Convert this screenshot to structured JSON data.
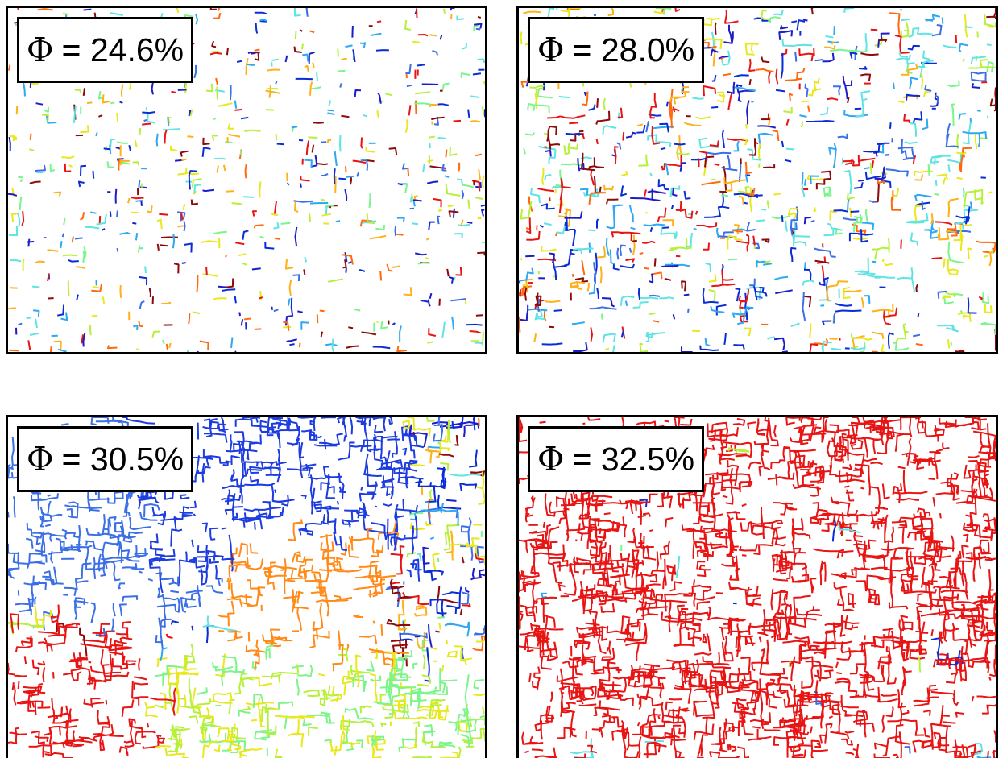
{
  "panels": [
    {
      "id": "p1",
      "phi_symbol": "Φ",
      "label": "= 24.6%",
      "seed": 11,
      "pattern": "sparse"
    },
    {
      "id": "p2",
      "phi_symbol": "Φ",
      "label": "= 28.0%",
      "seed": 23,
      "pattern": "medium"
    },
    {
      "id": "p3",
      "phi_symbol": "Φ",
      "label": "= 30.5%",
      "seed": 37,
      "pattern": "dense-clusters"
    },
    {
      "id": "p4",
      "phi_symbol": "Φ",
      "label": "= 32.5%",
      "seed": 53,
      "pattern": "percolated"
    }
  ],
  "colors": {
    "palette": [
      "#0a2cd6",
      "#3b6fe6",
      "#2ea8f0",
      "#5fe3e3",
      "#7bf58a",
      "#b6f03a",
      "#e8e81c",
      "#ffb11a",
      "#ff6a10",
      "#e81414",
      "#8c0a0a",
      "#1c1cc8"
    ],
    "percolated": "#e81414",
    "border": "#000000",
    "background": "#ffffff"
  }
}
